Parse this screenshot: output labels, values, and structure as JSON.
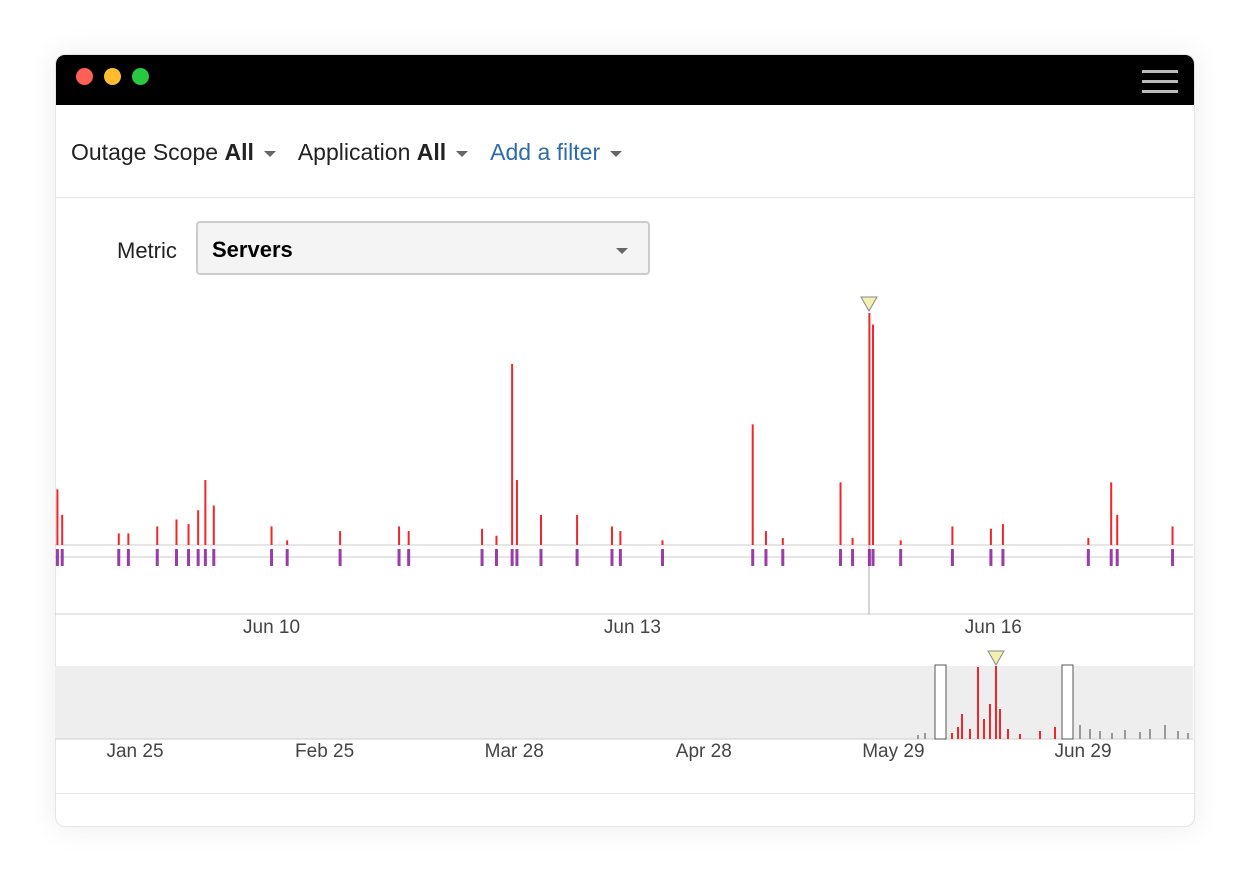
{
  "filters": [
    {
      "label": "Outage Scope",
      "value": "All"
    },
    {
      "label": "Application",
      "value": "All"
    }
  ],
  "add_filter": "Add a filter",
  "metric": {
    "label": "Metric",
    "value": "Servers"
  },
  "chart_data": {
    "type": "bar",
    "x": [
      8.22,
      8.26,
      8.73,
      8.81,
      9.05,
      9.21,
      9.31,
      9.39,
      9.45,
      9.52,
      10.0,
      10.13,
      10.57,
      11.06,
      11.14,
      11.75,
      11.87,
      12.0,
      12.04,
      12.24,
      12.54,
      12.83,
      12.9,
      13.25,
      14.0,
      14.11,
      14.25,
      14.73,
      14.83,
      14.97,
      15.0,
      15.23,
      15.66,
      15.98,
      16.08,
      16.79,
      16.98,
      17.03,
      17.49
    ],
    "values": [
      24,
      13,
      5,
      5,
      8,
      11,
      9,
      15,
      28,
      17,
      8,
      2,
      6,
      8,
      6,
      7,
      4,
      78,
      28,
      13,
      13,
      8,
      6,
      2,
      52,
      6,
      3,
      27,
      3,
      100,
      95,
      2,
      8,
      7,
      9,
      3,
      27,
      13,
      8
    ],
    "color": "#f0262a",
    "xlim": [
      8.2,
      17.66
    ],
    "ylim": [
      0,
      100
    ],
    "xticks": [
      {
        "value": 10,
        "label": "Jun 10"
      },
      {
        "value": 13,
        "label": "Jun 13"
      },
      {
        "value": 16,
        "label": "Jun 16"
      }
    ]
  },
  "overview": {
    "labels": [
      "Jan 25",
      "Feb 25",
      "Mar 28",
      "Apr 28",
      "May 29",
      "Jun 29"
    ]
  }
}
